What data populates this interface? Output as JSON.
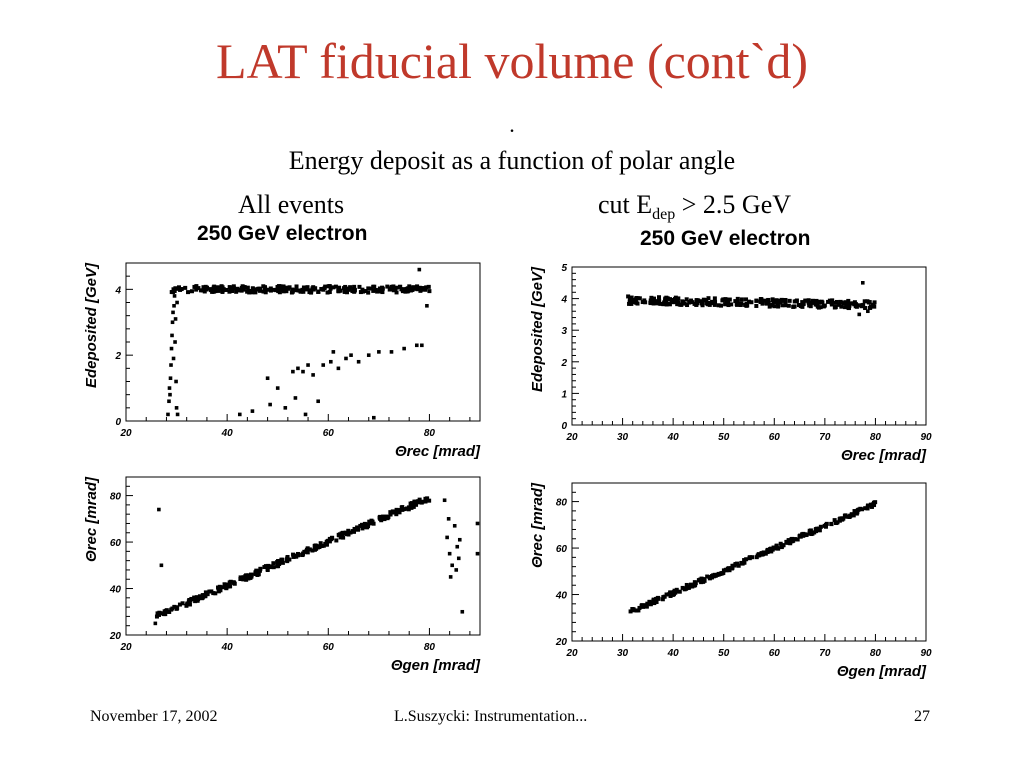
{
  "slide": {
    "title": "LAT fiducial volume (cont`d)",
    "dot": ".",
    "subtitle": "Energy deposit as a function of polar angle",
    "column_left": "All events",
    "column_right_prefix": "cut E",
    "column_right_sub": "dep",
    "column_right_suffix": " > 2.5 GeV",
    "panel_title_left": "250 GeV electron",
    "panel_title_right": "250 GeV electron"
  },
  "footer": {
    "date": "November 17, 2002",
    "author": "L.Suszycki: Instrumentation...",
    "page": "27"
  },
  "chart_data": [
    {
      "type": "scatter",
      "xlabel": "Θrec [mrad]",
      "ylabel": "Edeposited [GeV]",
      "xlim": [
        20,
        90
      ],
      "ylim": [
        0,
        4.8
      ],
      "xticks": [
        "20",
        "40",
        "60",
        "80"
      ],
      "yticks": [
        "0",
        "2",
        "4"
      ],
      "bands": [
        {
          "x": [
            29,
            80
          ],
          "y": [
            4.0,
            4.0
          ],
          "spread": 0.1
        }
      ],
      "points": [
        {
          "x": 28.3,
          "y": 0.2
        },
        {
          "x": 28.5,
          "y": 0.6
        },
        {
          "x": 28.6,
          "y": 1.0
        },
        {
          "x": 28.8,
          "y": 1.3
        },
        {
          "x": 28.9,
          "y": 1.7
        },
        {
          "x": 29.0,
          "y": 2.2
        },
        {
          "x": 29.1,
          "y": 2.6
        },
        {
          "x": 29.2,
          "y": 3.0
        },
        {
          "x": 29.3,
          "y": 3.3
        },
        {
          "x": 29.5,
          "y": 3.5
        },
        {
          "x": 29.7,
          "y": 2.4
        },
        {
          "x": 29.9,
          "y": 1.2
        },
        {
          "x": 30.0,
          "y": 0.4
        },
        {
          "x": 30.2,
          "y": 0.2
        },
        {
          "x": 29.4,
          "y": 1.9
        },
        {
          "x": 29.8,
          "y": 3.1
        },
        {
          "x": 30.1,
          "y": 3.6
        },
        {
          "x": 29.6,
          "y": 3.8
        },
        {
          "x": 28.7,
          "y": 0.8
        },
        {
          "x": 42.5,
          "y": 0.2
        },
        {
          "x": 45.0,
          "y": 0.3
        },
        {
          "x": 48.0,
          "y": 1.3
        },
        {
          "x": 48.5,
          "y": 0.5
        },
        {
          "x": 50.0,
          "y": 1.0
        },
        {
          "x": 51.5,
          "y": 0.4
        },
        {
          "x": 53.0,
          "y": 1.5
        },
        {
          "x": 54.0,
          "y": 1.6
        },
        {
          "x": 55.0,
          "y": 1.5
        },
        {
          "x": 56.0,
          "y": 1.7
        },
        {
          "x": 55.5,
          "y": 0.2
        },
        {
          "x": 57.0,
          "y": 1.4
        },
        {
          "x": 58.0,
          "y": 0.6
        },
        {
          "x": 59.0,
          "y": 1.7
        },
        {
          "x": 60.5,
          "y": 1.8
        },
        {
          "x": 62.0,
          "y": 1.6
        },
        {
          "x": 63.5,
          "y": 1.9
        },
        {
          "x": 64.5,
          "y": 2.0
        },
        {
          "x": 66.0,
          "y": 1.8
        },
        {
          "x": 68.0,
          "y": 2.0
        },
        {
          "x": 70.0,
          "y": 2.1
        },
        {
          "x": 72.5,
          "y": 2.1
        },
        {
          "x": 75.0,
          "y": 2.2
        },
        {
          "x": 77.5,
          "y": 2.3
        },
        {
          "x": 78.5,
          "y": 2.3
        },
        {
          "x": 69.0,
          "y": 0.1
        },
        {
          "x": 78.0,
          "y": 4.6
        },
        {
          "x": 79.5,
          "y": 3.5
        },
        {
          "x": 53.5,
          "y": 0.7
        },
        {
          "x": 61.0,
          "y": 2.1
        }
      ]
    },
    {
      "type": "scatter",
      "xlabel": "Θrec [mrad]",
      "ylabel": "Edeposited [GeV]",
      "xlim": [
        20,
        90
      ],
      "ylim": [
        0,
        5
      ],
      "xticks": [
        "20",
        "30",
        "40",
        "50",
        "60",
        "70",
        "80",
        "90"
      ],
      "yticks": [
        "0",
        "1",
        "2",
        "3",
        "4",
        "5"
      ],
      "bands": [
        {
          "x": [
            31,
            80
          ],
          "y": [
            3.95,
            3.8
          ],
          "spread": 0.12
        }
      ],
      "points": [
        {
          "x": 77.5,
          "y": 4.5
        },
        {
          "x": 78.5,
          "y": 3.6
        },
        {
          "x": 79.0,
          "y": 3.7
        },
        {
          "x": 76.8,
          "y": 3.5
        }
      ]
    },
    {
      "type": "scatter",
      "xlabel": "Θgen [mrad]",
      "ylabel": "Θrec [mrad]",
      "xlim": [
        20,
        90
      ],
      "ylim": [
        20,
        88
      ],
      "xticks": [
        "20",
        "40",
        "60",
        "80"
      ],
      "yticks": [
        "20",
        "40",
        "60",
        "80"
      ],
      "bands": [
        {
          "x": [
            26,
            80
          ],
          "y": [
            28,
            79
          ],
          "spread": 1.2
        }
      ],
      "points": [
        {
          "x": 26.5,
          "y": 74
        },
        {
          "x": 27.0,
          "y": 50
        },
        {
          "x": 25.8,
          "y": 25
        },
        {
          "x": 83.0,
          "y": 78
        },
        {
          "x": 83.5,
          "y": 62
        },
        {
          "x": 84.0,
          "y": 55
        },
        {
          "x": 84.5,
          "y": 50
        },
        {
          "x": 85.0,
          "y": 67
        },
        {
          "x": 85.5,
          "y": 58
        },
        {
          "x": 84.2,
          "y": 45
        },
        {
          "x": 85.8,
          "y": 53
        },
        {
          "x": 83.8,
          "y": 70
        },
        {
          "x": 85.3,
          "y": 48
        },
        {
          "x": 86.0,
          "y": 61
        },
        {
          "x": 86.5,
          "y": 30
        },
        {
          "x": 89.5,
          "y": 55
        },
        {
          "x": 89.5,
          "y": 68
        }
      ]
    },
    {
      "type": "scatter",
      "xlabel": "Θgen [mrad]",
      "ylabel": "Θrec [mrad]",
      "xlim": [
        20,
        90
      ],
      "ylim": [
        20,
        88
      ],
      "xticks": [
        "20",
        "30",
        "40",
        "50",
        "60",
        "70",
        "80",
        "90"
      ],
      "yticks": [
        "20",
        "40",
        "60",
        "80"
      ],
      "bands": [
        {
          "x": [
            31,
            80
          ],
          "y": [
            32,
            79
          ],
          "spread": 0.9
        }
      ],
      "points": []
    }
  ]
}
